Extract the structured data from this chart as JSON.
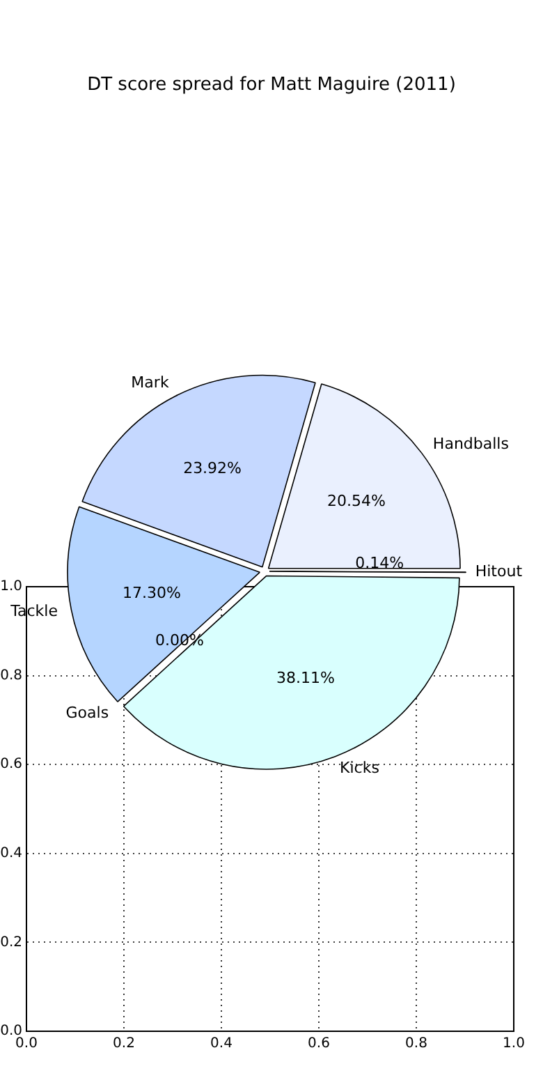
{
  "chart_data": [
    {
      "type": "pie",
      "title": "DT score spread for Matt Maguire (2011)",
      "categories": [
        "Hitout",
        "Kicks",
        "Goals",
        "Tackle",
        "Mark",
        "Handballs"
      ],
      "values": [
        0.14,
        38.11,
        0.0,
        17.3,
        23.92,
        20.54
      ],
      "colors": [
        "#ffffff",
        "#d9fffe",
        "#ffffff",
        "#b5d5ff",
        "#c5d8ff",
        "#eaf0fe"
      ],
      "value_labels": [
        "0.14%",
        "38.11%",
        "0.00%",
        "17.30%",
        "23.92%",
        "20.54%"
      ]
    },
    {
      "type": "scatter",
      "xlim": [
        0,
        1
      ],
      "ylim": [
        0,
        1
      ],
      "xticks": [
        {
          "value": 0,
          "label": "0.0"
        },
        {
          "value": 0.2,
          "label": "0.2"
        },
        {
          "value": 0.4,
          "label": "0.4"
        },
        {
          "value": 0.6,
          "label": "0.6"
        },
        {
          "value": 0.8,
          "label": "0.8"
        },
        {
          "value": 1,
          "label": "1.0"
        }
      ],
      "yticks": [
        {
          "value": 0,
          "label": "0.0"
        },
        {
          "value": 0.2,
          "label": "0.2"
        },
        {
          "value": 0.4,
          "label": "0.4"
        },
        {
          "value": 0.6,
          "label": "0.6"
        },
        {
          "value": 0.8,
          "label": "0.8"
        },
        {
          "value": 1,
          "label": "1.0"
        }
      ],
      "grid": true
    }
  ]
}
